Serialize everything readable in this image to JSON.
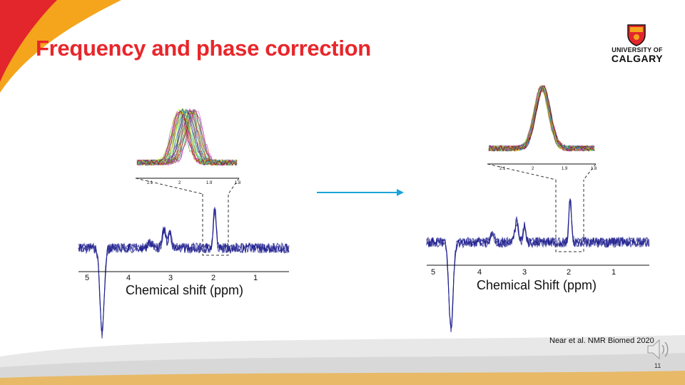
{
  "slide": {
    "title": "Frequency and phase correction",
    "logo": {
      "line1": "UNIVERSITY OF",
      "line2": "CALGARY"
    },
    "citation": "Near et al. NMR Biomed 2020",
    "slide_number": "11",
    "colors": {
      "title": "#e8262b",
      "arrow": "#1aa3d9",
      "spectrum": "#1a1a8c",
      "accent_orange": "#f4a51c",
      "accent_red": "#e3262b"
    }
  },
  "left_figure": {
    "xlabel": "Chemical shift (ppm)",
    "ticks": [
      "5",
      "4",
      "3",
      "2",
      "1"
    ],
    "inset_ticks": [
      "2.1",
      "2",
      "1.9",
      "1.8"
    ]
  },
  "right_figure": {
    "xlabel": "Chemical Shift (ppm)",
    "ticks": [
      "5",
      "4",
      "3",
      "2",
      "1"
    ],
    "inset_ticks": [
      "2.1",
      "2",
      "1.9",
      "1.8"
    ]
  },
  "icons": {
    "arrow": "right-arrow-icon",
    "audio": "speaker-icon",
    "logo": "university-crest-icon"
  }
}
